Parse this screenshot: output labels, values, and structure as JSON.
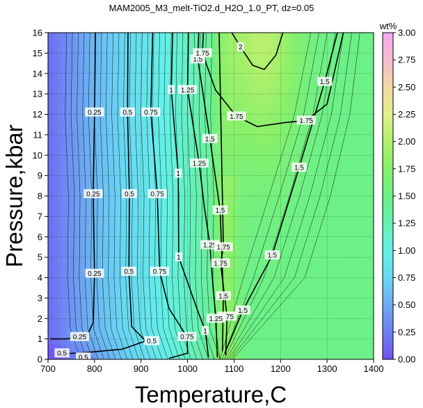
{
  "chart_data": {
    "type": "heatmap",
    "title": "MAM2005_M3_melt-TiO2.d_H2O_1.0_PT, dz=0.05",
    "xlabel": "Temperature,C",
    "ylabel": "Pressure,kbar",
    "xlim": [
      700,
      1400
    ],
    "ylim": [
      0,
      16
    ],
    "x_ticks": [
      "700",
      "800",
      "900",
      "1000",
      "1100",
      "1200",
      "1300",
      "1400"
    ],
    "y_ticks": [
      "0",
      "1",
      "2",
      "3",
      "4",
      "5",
      "6",
      "7",
      "8",
      "9",
      "10",
      "11",
      "12",
      "13",
      "14",
      "15",
      "16"
    ],
    "grid": true,
    "colorbar": {
      "label": "wt%",
      "range": [
        0,
        3
      ],
      "ticks": [
        "0.00",
        "0.25",
        "0.50",
        "0.75",
        "1.00",
        "1.25",
        "1.50",
        "1.75",
        "2.00",
        "2.25",
        "2.50",
        "2.75",
        "3.00"
      ],
      "colors": [
        "#6f51f2",
        "#6e7ff2",
        "#6daaf2",
        "#69d6f2",
        "#63f0e6",
        "#66f0b2",
        "#6cf088",
        "#86f06a",
        "#b1f06c",
        "#e0f08c",
        "#f2d9a2",
        "#f3bccd",
        "#f5a7f0"
      ]
    },
    "contour_labels": [
      {
        "value": "0.25",
        "x": 800,
        "y": 12.1
      },
      {
        "value": "0.5",
        "x": 871,
        "y": 12.1
      },
      {
        "value": "0.75",
        "x": 921,
        "y": 12.1
      },
      {
        "value": "1",
        "x": 965,
        "y": 13.2
      },
      {
        "value": "1.25",
        "x": 1000,
        "y": 13.2
      },
      {
        "value": "1.5",
        "x": 1022,
        "y": 14.7
      },
      {
        "value": "1.75",
        "x": 1032,
        "y": 15.0
      },
      {
        "value": "2",
        "x": 1114,
        "y": 15.3
      },
      {
        "value": "1.5",
        "x": 1295,
        "y": 13.6
      },
      {
        "value": "1.75",
        "x": 1255,
        "y": 11.7
      },
      {
        "value": "1.75",
        "x": 1105,
        "y": 11.9
      },
      {
        "value": "1.5",
        "x": 1048,
        "y": 10.8
      },
      {
        "value": "1.5",
        "x": 1240,
        "y": 9.4
      },
      {
        "value": "1.25",
        "x": 1025,
        "y": 9.6
      },
      {
        "value": "1",
        "x": 980,
        "y": 9.1
      },
      {
        "value": "0.75",
        "x": 935,
        "y": 8.1
      },
      {
        "value": "0.5",
        "x": 875,
        "y": 8.1
      },
      {
        "value": "0.25",
        "x": 797,
        "y": 8.1
      },
      {
        "value": "1.5",
        "x": 1070,
        "y": 7.3
      },
      {
        "value": "1.25",
        "x": 1048,
        "y": 5.6
      },
      {
        "value": "1.75",
        "x": 1077,
        "y": 5.5
      },
      {
        "value": "1.5",
        "x": 1182,
        "y": 5.1
      },
      {
        "value": "1.75",
        "x": 1071,
        "y": 4.7
      },
      {
        "value": "1",
        "x": 981,
        "y": 5.0
      },
      {
        "value": "0.75",
        "x": 940,
        "y": 4.3
      },
      {
        "value": "0.5",
        "x": 874,
        "y": 4.3
      },
      {
        "value": "0.25",
        "x": 800,
        "y": 4.2
      },
      {
        "value": "1.5",
        "x": 1077,
        "y": 3.1
      },
      {
        "value": "1.5",
        "x": 1119,
        "y": 2.4
      },
      {
        "value": "1.75",
        "x": 1085,
        "y": 2.1
      },
      {
        "value": "1.25",
        "x": 1061,
        "y": 2.0
      },
      {
        "value": "1",
        "x": 1038,
        "y": 1.4
      },
      {
        "value": "0.75",
        "x": 999,
        "y": 1.1
      },
      {
        "value": "0.5",
        "x": 923,
        "y": 0.9
      },
      {
        "value": "0.25",
        "x": 768,
        "y": 1.1
      },
      {
        "value": "0.5",
        "x": 730,
        "y": 0.3
      },
      {
        "value": "0.5",
        "x": 776,
        "y": 0.1
      }
    ]
  }
}
